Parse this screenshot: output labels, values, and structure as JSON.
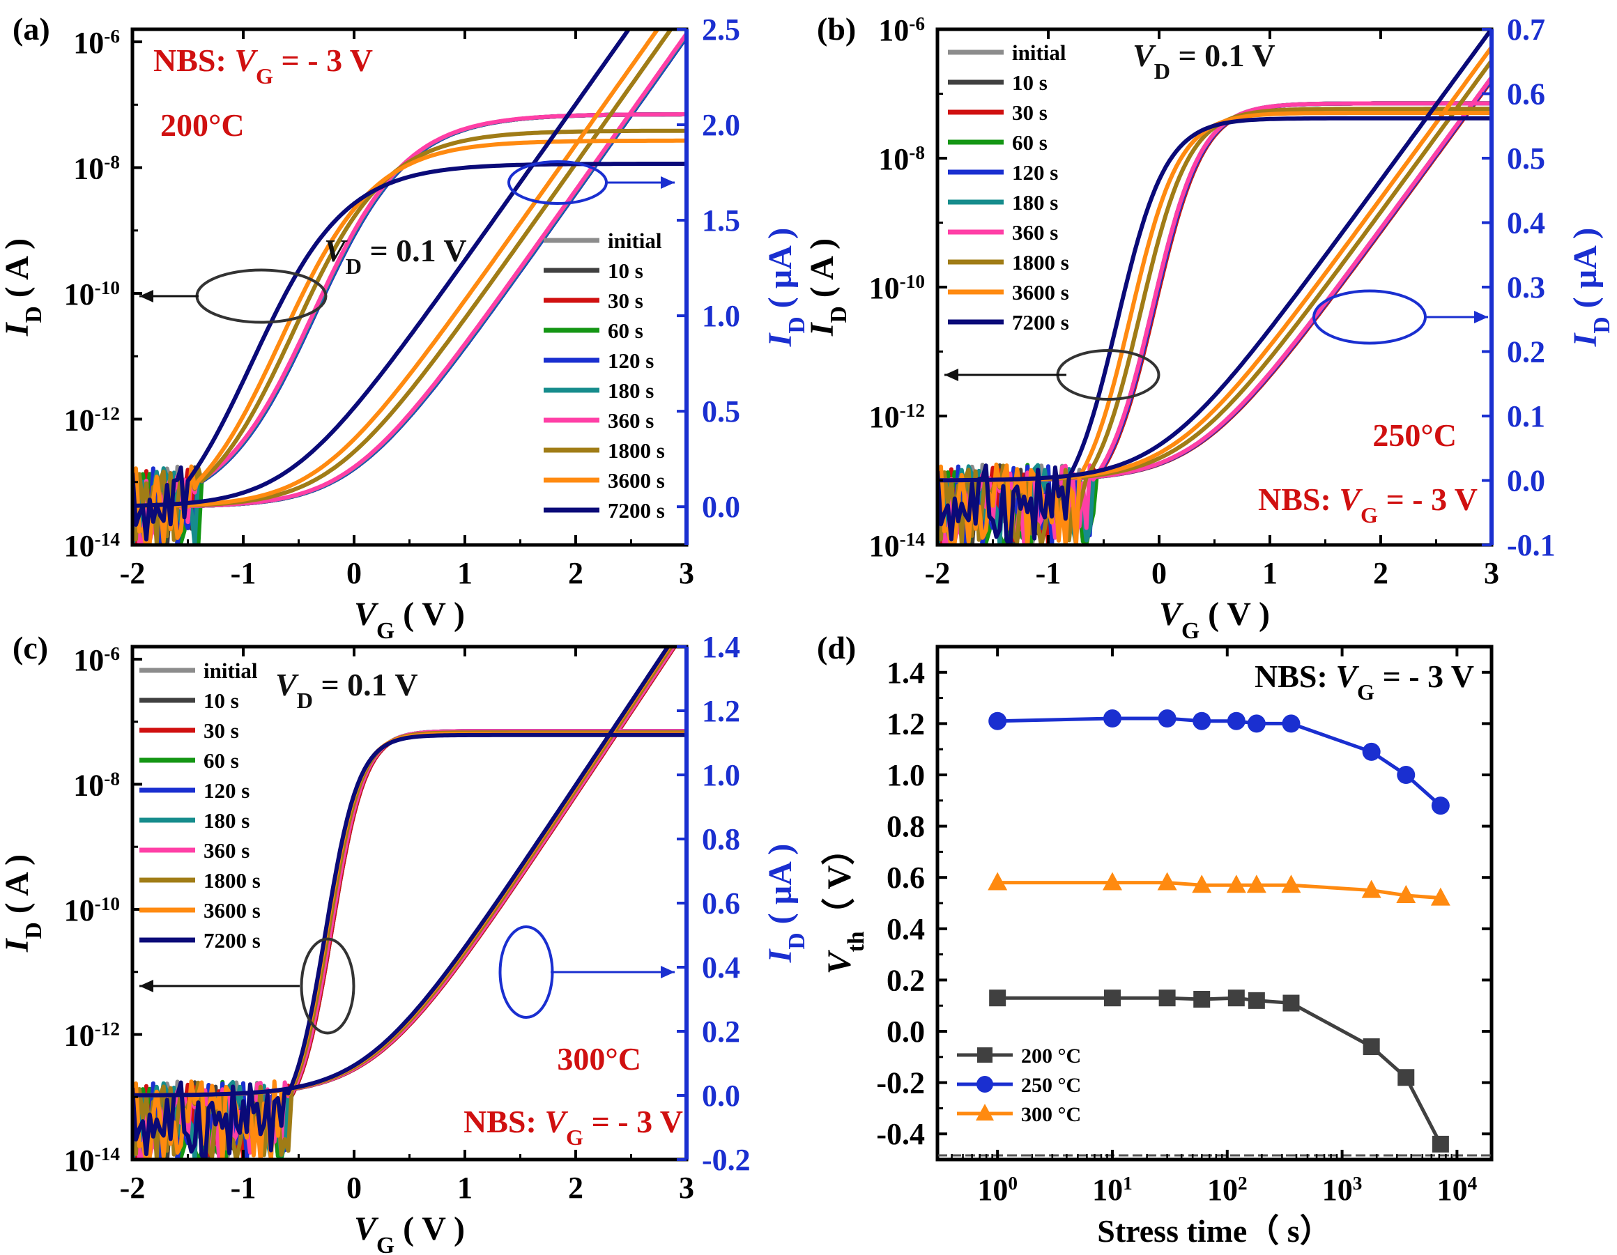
{
  "chart_data": [
    {
      "panel": "a",
      "panel_label": "(a)",
      "type": "line",
      "title": "",
      "xlabel": "V_G ( V )",
      "ylabel_left": "I_D ( A )",
      "ylabel_right": "I_D ( µA )",
      "xlim": [
        -2,
        3
      ],
      "xticks": [
        "-2",
        "-1",
        "0",
        "1",
        "2",
        "3"
      ],
      "ylim_left_exp": [
        -14,
        -5.8
      ],
      "yticks_left": [
        "10-14",
        "10-12",
        "10-10",
        "10-8",
        "10-6"
      ],
      "ylim_right": [
        -0.2,
        2.5
      ],
      "yticks_right": [
        "0.0",
        "0.5",
        "1.0",
        "1.5",
        "2.0",
        "2.5"
      ],
      "annotations": {
        "stress": "NBS: V_G = - 3 V",
        "temperature": "200°C",
        "drain": "V_D = 0.1 V"
      },
      "series": [
        {
          "name": "initial",
          "color": "#8c8c8c",
          "vth": 0.13,
          "log_shift": 0
        },
        {
          "name": "10 s",
          "color": "#404040",
          "vth": 0.13,
          "log_shift": 0
        },
        {
          "name": "30 s",
          "color": "#d01010",
          "vth": 0.13,
          "log_shift": 0
        },
        {
          "name": "60 s",
          "color": "#149614",
          "vth": 0.13,
          "log_shift": 0
        },
        {
          "name": "120 s",
          "color": "#1a2fd0",
          "vth": 0.13,
          "log_shift": 0
        },
        {
          "name": "180 s",
          "color": "#168c8c",
          "vth": 0.12,
          "log_shift": 0
        },
        {
          "name": "360 s",
          "color": "#ff3fa6",
          "vth": 0.11,
          "log_shift": 0
        },
        {
          "name": "1800 s",
          "color": "#a07c16",
          "vth": -0.06,
          "log_shift": -0.25
        },
        {
          "name": "3600 s",
          "color": "#ff8a10",
          "vth": -0.18,
          "log_shift": -0.4
        },
        {
          "name": "7200 s",
          "color": "#0a0a78",
          "vth": -0.44,
          "log_shift": -0.75
        }
      ]
    },
    {
      "panel": "b",
      "panel_label": "(b)",
      "type": "line",
      "title": "",
      "xlabel": "V_G ( V )",
      "ylabel_left": "I_D ( A )",
      "ylabel_right": "I_D ( µA )",
      "xlim": [
        -2,
        3
      ],
      "xticks": [
        "-2",
        "-1",
        "0",
        "1",
        "2",
        "3"
      ],
      "ylim_left_exp": [
        -14,
        -6
      ],
      "yticks_left": [
        "10-14",
        "10-12",
        "10-10",
        "10-8",
        "10-6"
      ],
      "ylim_right": [
        -0.1,
        0.7
      ],
      "yticks_right": [
        "-0.1",
        "0.0",
        "0.1",
        "0.2",
        "0.3",
        "0.4",
        "0.5",
        "0.6",
        "0.7"
      ],
      "annotations": {
        "stress": "NBS: V_G = - 3 V",
        "temperature": "250°C",
        "drain": "V_D = 0.1 V"
      },
      "series": [
        {
          "name": "initial",
          "color": "#8c8c8c",
          "vth": 1.21,
          "log_shift": 0
        },
        {
          "name": "10 s",
          "color": "#404040",
          "vth": 1.22,
          "log_shift": 0
        },
        {
          "name": "30 s",
          "color": "#d01010",
          "vth": 1.22,
          "log_shift": 0
        },
        {
          "name": "60 s",
          "color": "#149614",
          "vth": 1.21,
          "log_shift": 0
        },
        {
          "name": "120 s",
          "color": "#1a2fd0",
          "vth": 1.21,
          "log_shift": 0
        },
        {
          "name": "180 s",
          "color": "#168c8c",
          "vth": 1.2,
          "log_shift": 0
        },
        {
          "name": "360 s",
          "color": "#ff3fa6",
          "vth": 1.2,
          "log_shift": 0
        },
        {
          "name": "1800 s",
          "color": "#a07c16",
          "vth": 1.09,
          "log_shift": -0.08
        },
        {
          "name": "3600 s",
          "color": "#ff8a10",
          "vth": 1.0,
          "log_shift": -0.14
        },
        {
          "name": "7200 s",
          "color": "#0a0a78",
          "vth": 0.88,
          "log_shift": -0.22
        }
      ]
    },
    {
      "panel": "c",
      "panel_label": "(c)",
      "type": "line",
      "title": "",
      "xlabel": "V_G ( V )",
      "ylabel_left": "I_D ( A )",
      "ylabel_right": "I_D ( µA )",
      "xlim": [
        -2,
        3
      ],
      "xticks": [
        "-2",
        "-1",
        "0",
        "1",
        "2",
        "3"
      ],
      "ylim_left_exp": [
        -14,
        -5.8
      ],
      "yticks_left": [
        "10-14",
        "10-12",
        "10-10",
        "10-8",
        "10-6"
      ],
      "ylim_right": [
        -0.2,
        1.4
      ],
      "yticks_right": [
        "-0.2",
        "0.0",
        "0.2",
        "0.4",
        "0.6",
        "0.8",
        "1.0",
        "1.2",
        "1.4"
      ],
      "annotations": {
        "stress": "NBS: V_G = - 3 V",
        "temperature": "300°C",
        "drain": "V_D = 0.1 V"
      },
      "series": [
        {
          "name": "initial",
          "color": "#8c8c8c",
          "vth": 0.58,
          "log_shift": 0
        },
        {
          "name": "10 s",
          "color": "#404040",
          "vth": 0.58,
          "log_shift": 0
        },
        {
          "name": "30 s",
          "color": "#d01010",
          "vth": 0.58,
          "log_shift": 0
        },
        {
          "name": "60 s",
          "color": "#149614",
          "vth": 0.57,
          "log_shift": 0
        },
        {
          "name": "120 s",
          "color": "#1a2fd0",
          "vth": 0.57,
          "log_shift": 0
        },
        {
          "name": "180 s",
          "color": "#168c8c",
          "vth": 0.57,
          "log_shift": 0
        },
        {
          "name": "360 s",
          "color": "#ff3fa6",
          "vth": 0.57,
          "log_shift": 0
        },
        {
          "name": "1800 s",
          "color": "#a07c16",
          "vth": 0.55,
          "log_shift": -0.02
        },
        {
          "name": "3600 s",
          "color": "#ff8a10",
          "vth": 0.53,
          "log_shift": -0.04
        },
        {
          "name": "7200 s",
          "color": "#0a0a78",
          "vth": 0.52,
          "log_shift": -0.06
        }
      ]
    },
    {
      "panel": "d",
      "panel_label": "(d)",
      "type": "line",
      "title": "NBS: V_G = - 3 V",
      "xlabel": "Stress time（ s）",
      "ylabel": "V_th（ V）",
      "x_scale": "log",
      "xlim": [
        0.3,
        20000
      ],
      "xticks": [
        "10^0",
        "10^1",
        "10^2",
        "10^3",
        "10^4"
      ],
      "ylim": [
        -0.5,
        1.5
      ],
      "yticks": [
        "-0.4",
        "-0.2",
        "0.0",
        "0.2",
        "0.4",
        "0.6",
        "0.8",
        "1.0",
        "1.2",
        "1.4"
      ],
      "legend_position": "bottom-left",
      "x": [
        1,
        10,
        30,
        60,
        120,
        180,
        360,
        1800,
        3600,
        7200
      ],
      "series": [
        {
          "name": "200 °C",
          "color": "#404040",
          "marker": "square",
          "values": [
            0.13,
            0.13,
            0.13,
            0.125,
            0.13,
            0.12,
            0.11,
            -0.06,
            -0.18,
            -0.44
          ]
        },
        {
          "name": "250 °C",
          "color": "#1a2fd0",
          "marker": "circle",
          "values": [
            1.21,
            1.22,
            1.22,
            1.21,
            1.21,
            1.2,
            1.2,
            1.09,
            1.0,
            0.88
          ]
        },
        {
          "name": "300 °C",
          "color": "#ff8a10",
          "marker": "triangle",
          "values": [
            0.58,
            0.58,
            0.58,
            0.57,
            0.57,
            0.57,
            0.57,
            0.55,
            0.53,
            0.52
          ]
        }
      ]
    }
  ]
}
